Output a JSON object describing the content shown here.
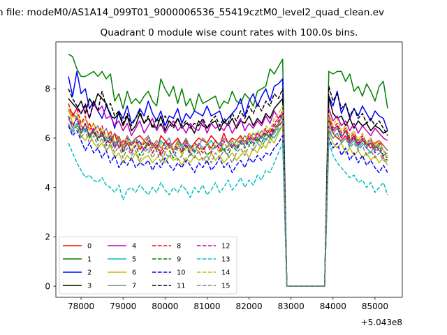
{
  "chart_data": {
    "type": "line",
    "suptitle": "n file: modeM0/AS1A14_099T01_9000006536_55419cztM0_level2_quad_clean.ev",
    "title": "Quadrant 0 module wise count rates with 100.0s bins.",
    "xlabel": "",
    "ylabel": "",
    "x_offset_label": "+5.043e8",
    "xlim": [
      77400,
      85650
    ],
    "ylim": [
      -0.45,
      9.9
    ],
    "x_ticks": [
      78000,
      79000,
      80000,
      81000,
      82000,
      83000,
      84000,
      85000
    ],
    "x_tick_labels": [
      "78000",
      "79000",
      "80000",
      "81000",
      "82000",
      "83000",
      "84000",
      "85000"
    ],
    "y_ticks": [
      0,
      2,
      4,
      6,
      8
    ],
    "y_tick_labels": [
      "0",
      "2",
      "4",
      "6",
      "8"
    ],
    "grid": false,
    "legend_position": "lower-left",
    "legend_columns": 4,
    "x_segments": {
      "seg1_start": 77700,
      "step": 100,
      "seg1_count": 52,
      "gap_start": 82900,
      "gap_end": 83800,
      "seg2_start": 83900,
      "seg2_count": 15
    },
    "series": [
      {
        "name": "0",
        "color": "#ff0000",
        "dash": "solid",
        "seg1": [
          7.2,
          7.0,
          6.8,
          6.5,
          6.3,
          6.6,
          6.2,
          6.0,
          6.1,
          5.9,
          5.8,
          6.2,
          5.6,
          5.9,
          5.8,
          5.7,
          6.0,
          6.1,
          5.9,
          5.7,
          5.8,
          5.5,
          6.1,
          5.9,
          5.6,
          5.8,
          6.0,
          5.7,
          5.9,
          5.6,
          5.8,
          6.0,
          5.9,
          5.8,
          6.1,
          5.9,
          5.7,
          6.2,
          5.8,
          6.0,
          5.9,
          6.1,
          5.8,
          6.2,
          6.0,
          5.9,
          6.1,
          6.2,
          6.0,
          6.3,
          6.5,
          6.7
        ],
        "seg2": [
          6.8,
          6.2,
          6.0,
          5.9,
          6.1,
          5.8,
          6.0,
          5.7,
          5.9,
          5.8,
          5.6,
          5.8,
          5.9,
          5.7,
          5.5
        ]
      },
      {
        "name": "1",
        "color": "#008000",
        "dash": "solid",
        "seg1": [
          9.4,
          9.3,
          8.8,
          8.5,
          8.5,
          8.6,
          8.7,
          8.5,
          8.7,
          8.4,
          8.6,
          7.5,
          7.8,
          7.2,
          7.9,
          7.4,
          7.6,
          7.4,
          7.7,
          7.9,
          7.5,
          7.3,
          8.4,
          8.0,
          7.7,
          8.1,
          7.4,
          8.0,
          7.3,
          7.6,
          7.1,
          7.8,
          7.4,
          7.5,
          7.6,
          7.7,
          7.2,
          7.5,
          7.4,
          7.9,
          7.5,
          7.4,
          7.8,
          7.6,
          7.3,
          7.9,
          8.0,
          8.1,
          8.8,
          8.6,
          8.9,
          9.2
        ],
        "seg2": [
          8.7,
          8.6,
          8.7,
          8.7,
          8.3,
          8.6,
          7.9,
          8.1,
          7.7,
          8.2,
          7.9,
          7.5,
          8.1,
          8.3,
          7.2
        ]
      },
      {
        "name": "2",
        "color": "#0000ff",
        "dash": "solid",
        "seg1": [
          8.5,
          7.7,
          8.7,
          7.8,
          8.0,
          7.2,
          7.5,
          7.1,
          6.8,
          7.3,
          7.0,
          6.4,
          7.1,
          6.8,
          7.3,
          6.6,
          6.8,
          7.2,
          6.9,
          7.5,
          7.0,
          6.7,
          7.1,
          6.5,
          6.9,
          6.8,
          7.2,
          6.6,
          7.0,
          6.8,
          7.1,
          7.0,
          6.9,
          7.3,
          6.9,
          7.0,
          7.1,
          6.6,
          6.8,
          7.0,
          7.2,
          7.6,
          6.9,
          7.5,
          7.8,
          7.3,
          7.7,
          8.0,
          7.5,
          8.1,
          8.2,
          8.4
        ],
        "seg2": [
          7.7,
          7.3,
          7.9,
          7.0,
          7.4,
          6.8,
          7.2,
          6.9,
          7.3,
          7.0,
          6.7,
          7.1,
          6.9,
          6.8,
          6.3
        ]
      },
      {
        "name": "3",
        "color": "#000000",
        "dash": "solid",
        "seg1": [
          7.6,
          7.4,
          7.2,
          7.5,
          7.0,
          7.6,
          7.3,
          7.8,
          7.6,
          7.4,
          6.9,
          6.8,
          7.0,
          6.5,
          6.9,
          6.3,
          6.5,
          7.0,
          6.6,
          6.8,
          6.5,
          6.4,
          6.9,
          6.3,
          6.7,
          6.5,
          6.8,
          6.4,
          6.6,
          6.5,
          6.2,
          6.7,
          6.5,
          6.4,
          6.6,
          6.7,
          6.3,
          6.7,
          6.5,
          6.8,
          6.4,
          6.7,
          6.6,
          6.9,
          6.5,
          6.8,
          6.6,
          7.0,
          6.8,
          7.2,
          7.4,
          7.6
        ],
        "seg2": [
          7.7,
          7.0,
          6.8,
          6.9,
          6.5,
          6.8,
          6.4,
          6.7,
          6.5,
          6.6,
          6.3,
          6.5,
          6.4,
          6.2,
          6.3
        ]
      },
      {
        "name": "4",
        "color": "#bf00bf",
        "dash": "solid",
        "seg1": [
          7.1,
          6.9,
          7.2,
          7.0,
          7.3,
          6.8,
          7.4,
          7.1,
          7.3,
          6.8,
          6.9,
          6.5,
          6.7,
          6.3,
          6.6,
          6.1,
          6.4,
          6.7,
          6.2,
          6.5,
          6.8,
          6.3,
          6.6,
          6.2,
          6.5,
          6.7,
          6.3,
          6.5,
          6.2,
          6.6,
          6.4,
          6.3,
          6.7,
          6.2,
          6.6,
          6.4,
          6.5,
          6.3,
          6.6,
          6.2,
          6.5,
          6.8,
          6.3,
          6.6,
          6.4,
          6.7,
          6.5,
          6.9,
          6.6,
          7.1,
          6.8,
          7.0
        ],
        "seg2": [
          7.2,
          6.7,
          6.9,
          6.5,
          6.7,
          6.3,
          6.6,
          6.2,
          6.5,
          6.3,
          6.1,
          6.4,
          6.2,
          6.0,
          5.9
        ]
      },
      {
        "name": "5",
        "color": "#00bfbf",
        "dash": "solid",
        "seg1": [
          6.5,
          6.3,
          6.6,
          6.2,
          6.4,
          6.1,
          6.3,
          6.0,
          6.2,
          5.9,
          6.1,
          5.7,
          6.0,
          5.6,
          5.9,
          5.7,
          6.0,
          5.8,
          5.5,
          5.9,
          5.7,
          5.6,
          5.9,
          5.7,
          5.8,
          5.5,
          5.9,
          5.6,
          5.8,
          5.7,
          5.4,
          5.8,
          5.6,
          5.7,
          5.9,
          5.6,
          5.8,
          5.5,
          5.7,
          5.9,
          5.6,
          5.8,
          5.9,
          5.7,
          6.0,
          5.8,
          6.1,
          5.9,
          6.2,
          6.0,
          6.3,
          6.5
        ],
        "seg2": [
          6.3,
          6.0,
          6.2,
          5.8,
          6.0,
          5.7,
          5.9,
          5.6,
          5.8,
          5.6,
          5.4,
          5.7,
          5.5,
          5.3,
          5.4
        ]
      },
      {
        "name": "6",
        "color": "#bfbf00",
        "dash": "solid",
        "seg1": [
          7.2,
          6.6,
          6.4,
          6.1,
          5.9,
          6.2,
          5.8,
          5.6,
          5.8,
          5.5,
          5.7,
          5.2,
          5.4,
          5.0,
          5.3,
          5.1,
          5.4,
          5.0,
          5.2,
          5.3,
          5.0,
          5.2,
          5.4,
          5.0,
          5.3,
          5.1,
          5.2,
          4.9,
          5.2,
          5.0,
          5.3,
          5.1,
          5.2,
          5.0,
          5.4,
          5.1,
          5.3,
          5.0,
          5.2,
          5.4,
          5.1,
          5.3,
          5.5,
          5.2,
          5.6,
          5.4,
          5.8,
          5.6,
          6.0,
          5.8,
          6.2,
          6.5
        ],
        "seg2": [
          6.2,
          5.8,
          5.6,
          5.8,
          5.4,
          5.6,
          5.3,
          5.5,
          5.2,
          5.4,
          5.1,
          5.3,
          5.0,
          5.2,
          4.9
        ]
      },
      {
        "name": "7",
        "color": "#808080",
        "dash": "solid",
        "seg1": [
          6.8,
          6.4,
          6.9,
          6.2,
          6.6,
          6.0,
          6.3,
          6.5,
          6.1,
          6.4,
          5.9,
          6.2,
          6.0,
          5.7,
          6.1,
          5.8,
          6.0,
          5.6,
          5.9,
          6.1,
          5.7,
          5.9,
          5.6,
          5.8,
          6.0,
          5.5,
          5.9,
          5.7,
          6.0,
          5.6,
          5.8,
          5.7,
          6.0,
          5.8,
          5.6,
          5.9,
          5.7,
          6.0,
          5.8,
          5.6,
          5.9,
          5.8,
          6.1,
          5.9,
          6.2,
          6.0,
          6.3,
          6.1,
          6.4,
          6.2,
          6.6,
          6.9
        ],
        "seg2": [
          6.5,
          6.2,
          6.4,
          6.0,
          6.3,
          5.9,
          6.1,
          5.8,
          6.0,
          5.7,
          5.9,
          5.6,
          5.8,
          5.7,
          5.5
        ]
      },
      {
        "name": "8",
        "color": "#ff0000",
        "dash": "dashed",
        "seg1": [
          7.4,
          6.9,
          7.2,
          6.6,
          6.9,
          6.3,
          6.6,
          6.2,
          6.5,
          6.0,
          6.3,
          5.8,
          6.1,
          5.6,
          6.0,
          5.7,
          5.9,
          5.5,
          5.8,
          6.0,
          5.6,
          5.8,
          5.4,
          5.9,
          5.7,
          5.5,
          5.8,
          5.4,
          5.7,
          5.5,
          5.8,
          5.6,
          5.4,
          5.8,
          5.6,
          5.9,
          5.5,
          5.8,
          5.6,
          5.9,
          5.7,
          6.0,
          5.8,
          6.1,
          5.9,
          6.2,
          6.0,
          6.4,
          6.2,
          6.6,
          6.8,
          7.1
        ],
        "seg2": [
          6.9,
          6.4,
          6.6,
          6.2,
          6.4,
          6.0,
          6.2,
          5.9,
          6.1,
          5.8,
          6.0,
          5.6,
          5.8,
          5.5,
          5.3
        ]
      },
      {
        "name": "9",
        "color": "#008000",
        "dash": "dashed",
        "seg1": [
          6.9,
          6.5,
          6.8,
          6.2,
          6.6,
          6.0,
          6.3,
          5.9,
          6.2,
          5.7,
          6.0,
          5.6,
          5.9,
          5.4,
          5.8,
          5.5,
          5.7,
          5.3,
          5.6,
          5.8,
          5.4,
          5.7,
          5.3,
          5.6,
          5.5,
          5.2,
          5.6,
          5.4,
          5.7,
          5.3,
          5.5,
          5.4,
          5.6,
          5.3,
          5.5,
          5.7,
          5.4,
          5.6,
          5.3,
          5.7,
          5.5,
          5.8,
          5.6,
          5.9,
          5.7,
          6.0,
          5.8,
          6.2,
          6.0,
          6.4,
          6.6,
          6.9
        ],
        "seg2": [
          6.7,
          6.3,
          6.5,
          6.1,
          6.3,
          5.9,
          6.1,
          5.8,
          6.0,
          5.7,
          5.8,
          5.5,
          5.7,
          5.3,
          5.2
        ]
      },
      {
        "name": "10",
        "color": "#0000ff",
        "dash": "dashed",
        "seg1": [
          6.5,
          6.1,
          6.3,
          5.9,
          5.5,
          5.8,
          5.4,
          5.6,
          5.2,
          5.5,
          5.0,
          5.3,
          4.8,
          5.1,
          4.9,
          5.2,
          4.8,
          5.0,
          4.9,
          5.1,
          4.7,
          5.0,
          4.8,
          5.2,
          4.9,
          4.7,
          5.0,
          4.8,
          5.1,
          4.9,
          4.6,
          5.0,
          4.8,
          5.1,
          4.7,
          4.9,
          5.2,
          4.8,
          5.0,
          4.6,
          4.9,
          5.1,
          4.8,
          5.2,
          5.0,
          5.3,
          5.1,
          5.4,
          5.3,
          5.6,
          5.8,
          6.1
        ],
        "seg2": [
          6.0,
          5.6,
          5.8,
          5.3,
          5.6,
          5.1,
          5.4,
          5.0,
          5.3,
          4.9,
          5.1,
          4.8,
          4.6,
          4.9,
          4.6
        ]
      },
      {
        "name": "11",
        "color": "#000000",
        "dash": "dashed",
        "seg1": [
          8.0,
          7.6,
          7.3,
          7.0,
          7.4,
          6.8,
          7.5,
          7.1,
          7.9,
          7.3,
          7.4,
          6.9,
          7.1,
          6.6,
          7.0,
          6.5,
          6.8,
          7.1,
          6.6,
          6.9,
          6.4,
          6.8,
          6.5,
          6.9,
          6.6,
          6.4,
          6.8,
          6.5,
          6.7,
          6.4,
          6.6,
          6.5,
          6.8,
          6.4,
          6.7,
          6.9,
          6.5,
          6.8,
          6.6,
          7.0,
          6.7,
          7.1,
          6.8,
          7.3,
          7.0,
          7.4,
          7.1,
          7.5,
          7.3,
          7.8,
          7.6,
          8.0
        ],
        "seg2": [
          8.1,
          7.5,
          7.8,
          7.2,
          7.4,
          6.9,
          7.2,
          6.8,
          7.0,
          6.6,
          6.8,
          6.5,
          6.7,
          6.4,
          6.1
        ]
      },
      {
        "name": "12",
        "color": "#bf00bf",
        "dash": "dashed",
        "seg1": [
          6.9,
          6.5,
          6.8,
          6.3,
          6.6,
          6.1,
          6.4,
          6.0,
          6.3,
          5.8,
          6.1,
          5.6,
          5.9,
          5.5,
          5.8,
          5.4,
          5.7,
          5.9,
          5.5,
          5.8,
          5.4,
          5.7,
          5.3,
          5.6,
          5.8,
          5.4,
          5.7,
          5.5,
          5.8,
          5.4,
          5.6,
          5.7,
          5.5,
          5.8,
          5.4,
          5.7,
          5.6,
          5.9,
          5.5,
          5.8,
          5.6,
          5.9,
          5.7,
          6.0,
          5.8,
          6.2,
          6.0,
          6.3,
          6.1,
          6.5,
          6.7,
          7.0
        ],
        "seg2": [
          6.8,
          6.3,
          6.5,
          6.0,
          6.3,
          5.8,
          6.1,
          5.7,
          6.0,
          5.6,
          5.8,
          5.4,
          5.6,
          5.2,
          5.1
        ]
      },
      {
        "name": "13",
        "color": "#00bfbf",
        "dash": "dashed",
        "seg1": [
          5.8,
          5.4,
          5.0,
          4.7,
          4.4,
          4.5,
          4.3,
          4.2,
          4.4,
          4.1,
          4.0,
          3.8,
          4.1,
          3.5,
          3.9,
          4.0,
          3.8,
          4.1,
          3.9,
          3.7,
          4.0,
          3.8,
          4.2,
          3.9,
          3.7,
          4.0,
          3.8,
          4.1,
          3.9,
          3.6,
          4.0,
          3.8,
          4.1,
          3.7,
          3.9,
          4.2,
          3.8,
          4.0,
          4.3,
          3.9,
          4.1,
          4.4,
          4.0,
          4.3,
          4.1,
          4.5,
          4.3,
          4.7,
          4.6,
          5.0,
          5.4,
          5.8
        ],
        "seg2": [
          5.9,
          5.3,
          5.0,
          4.8,
          4.6,
          4.4,
          4.5,
          4.2,
          4.3,
          4.0,
          4.2,
          3.8,
          4.0,
          4.2,
          3.7
        ]
      },
      {
        "name": "14",
        "color": "#bfbf00",
        "dash": "dashed",
        "seg1": [
          7.2,
          6.8,
          7.0,
          6.5,
          6.8,
          6.3,
          6.6,
          6.1,
          6.4,
          6.0,
          6.2,
          5.8,
          6.0,
          5.6,
          5.9,
          5.5,
          5.8,
          5.6,
          5.9,
          5.4,
          5.7,
          5.5,
          5.8,
          5.4,
          5.7,
          5.5,
          5.8,
          5.3,
          5.6,
          5.5,
          5.7,
          5.4,
          5.6,
          5.8,
          5.5,
          5.7,
          5.4,
          5.8,
          5.6,
          5.9,
          5.7,
          6.0,
          5.8,
          6.2,
          6.0,
          6.3,
          6.1,
          6.5,
          6.3,
          6.8,
          7.0,
          7.3
        ],
        "seg2": [
          7.0,
          6.5,
          6.8,
          6.3,
          6.5,
          6.1,
          6.3,
          5.9,
          6.2,
          5.8,
          6.0,
          5.7,
          5.9,
          5.5,
          5.2
        ]
      },
      {
        "name": "15",
        "color": "#808080",
        "dash": "dashed",
        "seg1": [
          6.6,
          6.2,
          6.5,
          6.0,
          6.3,
          5.8,
          6.1,
          5.7,
          6.0,
          5.5,
          5.8,
          5.4,
          5.7,
          5.2,
          5.6,
          5.3,
          5.5,
          5.1,
          5.4,
          5.6,
          5.2,
          5.5,
          5.0,
          5.4,
          5.2,
          5.5,
          5.1,
          5.3,
          5.0,
          5.4,
          5.2,
          5.5,
          5.1,
          5.3,
          5.0,
          5.4,
          5.2,
          5.5,
          5.3,
          5.0,
          5.4,
          5.6,
          5.3,
          5.7,
          5.5,
          5.8,
          5.6,
          6.0,
          5.8,
          6.2,
          6.4,
          6.7
        ],
        "seg2": [
          6.4,
          6.0,
          6.2,
          5.8,
          6.0,
          5.6,
          5.8,
          5.5,
          5.7,
          5.3,
          5.5,
          5.2,
          5.4,
          5.1,
          5.0
        ]
      }
    ]
  }
}
